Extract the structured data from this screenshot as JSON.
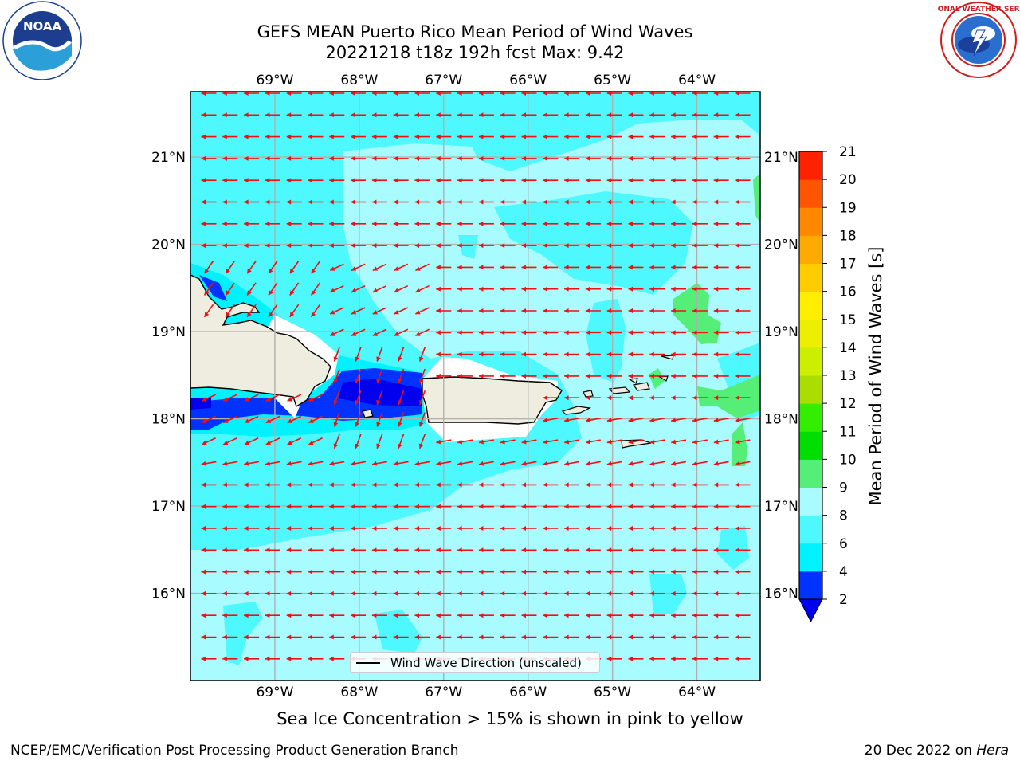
{
  "header": {
    "title_line1": "GEFS MEAN Puerto Rico Mean Period of Wind Waves",
    "title_line2": "20221218 t18z 192h fcst   Max: 9.42"
  },
  "logos": {
    "noaa": {
      "text": "NOAA",
      "ring_text": "NATIONAL OCEANIC AND ATMOSPHERIC ADMINISTRATION · U.S. DEPARTMENT OF COMMERCE",
      "icon": "noaa-logo"
    },
    "nws": {
      "ring_text": "NATIONAL WEATHER SERVICE",
      "icon": "nws-logo"
    }
  },
  "map": {
    "lon_labels": [
      "69°W",
      "68°W",
      "67°W",
      "66°W",
      "65°W",
      "64°W"
    ],
    "lat_labels": [
      "21°N",
      "20°N",
      "19°N",
      "18°N",
      "17°N",
      "16°N"
    ],
    "lon_values": [
      -69,
      -68,
      -67,
      -66,
      -65,
      -64
    ],
    "lat_values": [
      21,
      20,
      19,
      18,
      17,
      16
    ],
    "extent": {
      "lon_min": -70,
      "lon_max": -63.25,
      "lat_min": 15.0,
      "lat_max": 21.75
    },
    "arrow_color": "#ee1111",
    "land_color": "#eeede0",
    "grid_color": "#b0b0b0",
    "legend_label": "Wind Wave Direction (unscaled)"
  },
  "colorbar": {
    "title": "Mean Period of Wind Waves [s]",
    "levels": [
      "2",
      "4",
      "6",
      "8",
      "9",
      "10",
      "11",
      "12",
      "13",
      "14",
      "15",
      "16",
      "17",
      "18",
      "19",
      "20",
      "21"
    ],
    "colors": [
      "#0033ff",
      "#00f2ff",
      "#4ef8ff",
      "#a8fbff",
      "#55ee77",
      "#00dd00",
      "#33ee00",
      "#aadd00",
      "#ccee00",
      "#eeee00",
      "#ffee00",
      "#ffcc00",
      "#ffaa00",
      "#ff8800",
      "#ff5500",
      "#ff2200"
    ],
    "under_color": "#0000ee",
    "over_color": "#ff0000"
  },
  "subcaption": "Sea Ice Concentration > 15% is shown in pink to yellow",
  "footer": {
    "left": "NCEP/EMC/Verification Post Processing Product Generation Branch",
    "right_prefix": "20 Dec 2022 on ",
    "right_italic": "Hera"
  }
}
